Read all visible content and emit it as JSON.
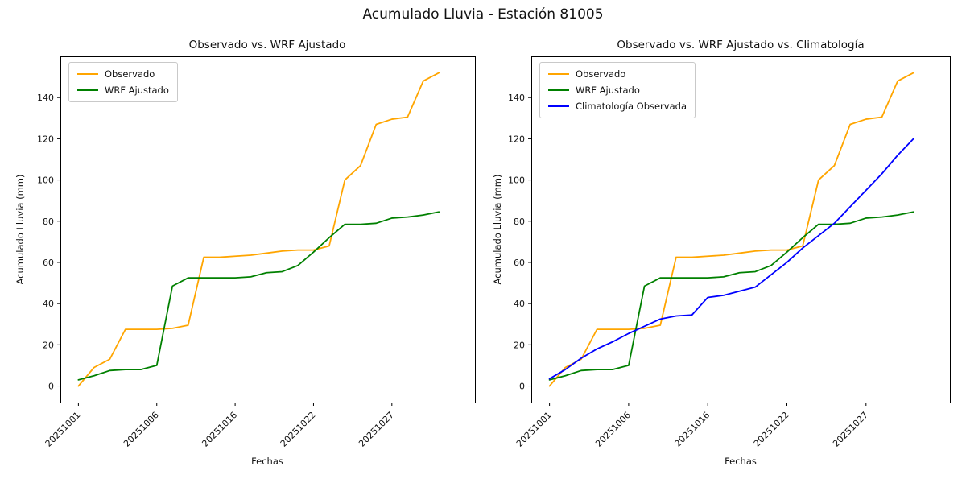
{
  "figure": {
    "title": "Acumulado Lluvia - Estación 81005",
    "background": "#ffffff"
  },
  "chart_data": [
    {
      "type": "line",
      "title": "Observado vs. WRF Ajustado",
      "xlabel": "Fechas",
      "ylabel": "Acumulado Lluvia (mm)",
      "xlim": [
        -1.15,
        25.3
      ],
      "ylim": [
        -8,
        160
      ],
      "grid": false,
      "legend_position": "upper left",
      "y_ticks": [
        0,
        20,
        40,
        60,
        80,
        100,
        120,
        140
      ],
      "x_tick_positions": [
        0,
        5,
        10,
        15,
        20
      ],
      "x_tick_labels": [
        "20251001",
        "20251006",
        "20251016",
        "20251022",
        "20251027"
      ],
      "series": [
        {
          "name": "Observado",
          "color": "#ffa500",
          "values": [
            0,
            9,
            13,
            27.5,
            27.5,
            27.5,
            28,
            29.5,
            62.5,
            62.5,
            63,
            63.5,
            64.5,
            65.5,
            66,
            66,
            68,
            100,
            107,
            127,
            129.5,
            130.5,
            148,
            152
          ]
        },
        {
          "name": "WRF Ajustado",
          "color": "#008000",
          "values": [
            3,
            5,
            7.5,
            8,
            8,
            10,
            48.5,
            52.5,
            52.5,
            52.5,
            52.5,
            53,
            55,
            55.5,
            58.5,
            65,
            72,
            78.5,
            78.5,
            79,
            81.5,
            82,
            83,
            84.5
          ]
        }
      ]
    },
    {
      "type": "line",
      "title": "Observado vs. WRF Ajustado vs. Climatología",
      "xlabel": "Fechas",
      "ylabel": "Acumulado Lluvia (mm)",
      "xlim": [
        -1.15,
        25.3
      ],
      "ylim": [
        -8,
        160
      ],
      "grid": false,
      "legend_position": "upper left",
      "y_ticks": [
        0,
        20,
        40,
        60,
        80,
        100,
        120,
        140
      ],
      "x_tick_positions": [
        0,
        5,
        10,
        15,
        20
      ],
      "x_tick_labels": [
        "20251001",
        "20251006",
        "20251016",
        "20251022",
        "20251027"
      ],
      "series": [
        {
          "name": "Observado",
          "color": "#ffa500",
          "values": [
            0,
            9,
            13,
            27.5,
            27.5,
            27.5,
            28,
            29.5,
            62.5,
            62.5,
            63,
            63.5,
            64.5,
            65.5,
            66,
            66,
            68,
            100,
            107,
            127,
            129.5,
            130.5,
            148,
            152
          ]
        },
        {
          "name": "WRF Ajustado",
          "color": "#008000",
          "values": [
            3,
            5,
            7.5,
            8,
            8,
            10,
            48.5,
            52.5,
            52.5,
            52.5,
            52.5,
            53,
            55,
            55.5,
            58.5,
            65,
            72,
            78.5,
            78.5,
            79,
            81.5,
            82,
            83,
            84.5
          ]
        },
        {
          "name": "Climatología Observada",
          "color": "#0000ff",
          "values": [
            3.5,
            8,
            13.5,
            18,
            21.5,
            25.5,
            29,
            32.5,
            34,
            34.5,
            43,
            44,
            46,
            48,
            54,
            60,
            67,
            73,
            79,
            87,
            95,
            103,
            112,
            120
          ]
        }
      ]
    }
  ]
}
